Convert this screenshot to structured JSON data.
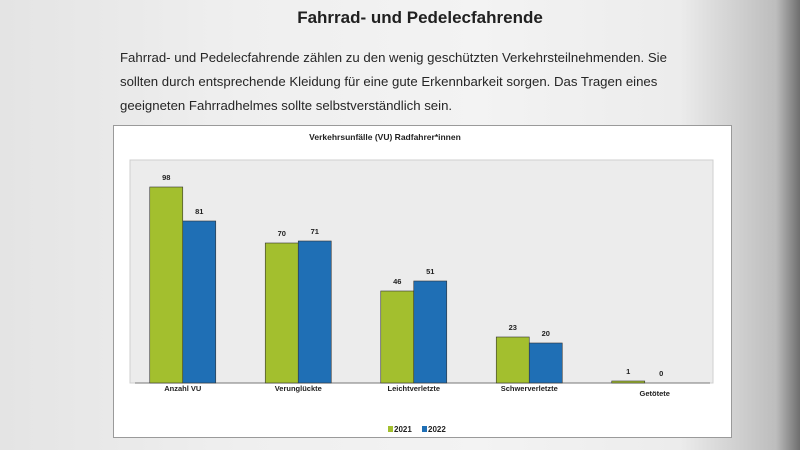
{
  "page": {
    "title": "Fahrrad- und Pedelecfahrende",
    "paragraph_lines": [
      "Fahrrad- und Pedelecfahrende zählen zu den wenig geschützten Verkehrsteilnehmenden. Sie",
      "sollten durch entsprechende Kleidung für eine gute Erkennbarkeit sorgen. Das Tragen eines",
      "geeigneten Fahrradhelmes sollte selbstverständlich sein."
    ]
  },
  "chart_data": {
    "type": "bar",
    "title": "Verkehrsunfälle (VU) Radfahrer*innen",
    "categories": [
      "Anzahl VU",
      "Verunglückte",
      "Leichtverletzte",
      "Schwerverletzte",
      "Getötete"
    ],
    "series": [
      {
        "name": "2021",
        "values": [
          98,
          70,
          46,
          23,
          1
        ],
        "color": "#a3bf2e"
      },
      {
        "name": "2022",
        "values": [
          81,
          71,
          51,
          20,
          0
        ],
        "color": "#1f6fb5"
      }
    ],
    "xlabel": "",
    "ylabel": "",
    "ylim": [
      0,
      100
    ],
    "grid": false,
    "legend_position": "bottom"
  }
}
